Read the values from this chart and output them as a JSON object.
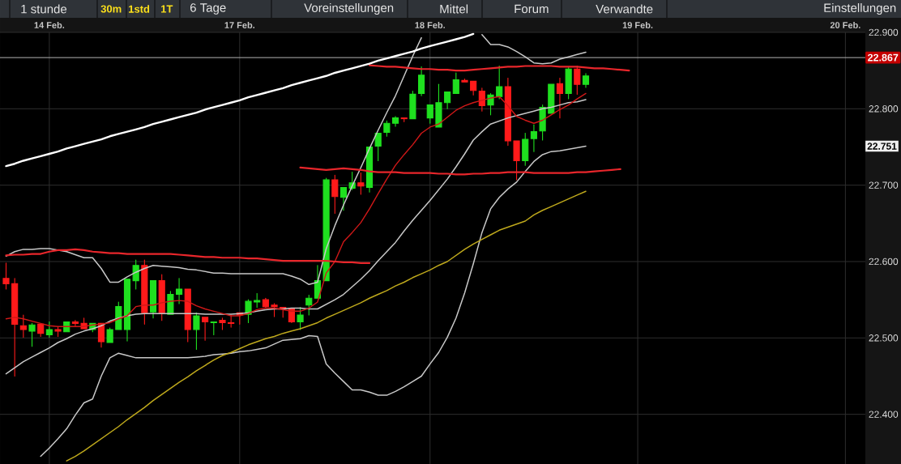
{
  "chart_data": {
    "type": "candlestick",
    "categories": [
      null,
      null,
      null,
      null,
      null,
      "14 Feb.",
      null,
      null,
      null,
      null,
      null,
      null,
      null,
      null,
      null,
      null,
      null,
      null,
      null,
      null,
      null,
      null,
      null,
      null,
      null,
      null,
      null,
      "17 Feb.",
      null,
      null,
      null,
      null,
      null,
      null,
      null,
      null,
      null,
      null,
      null,
      null,
      null,
      null,
      null,
      null,
      null,
      null,
      null,
      null,
      null,
      "18 Feb.",
      null,
      null,
      null,
      null,
      null,
      null,
      null,
      null,
      null,
      null,
      null,
      null,
      null,
      null,
      null,
      null,
      null,
      null,
      null,
      null,
      null,
      null,
      null,
      "19 Feb.",
      null,
      null,
      null,
      null,
      null,
      null,
      null,
      null,
      null,
      null,
      null,
      null,
      null,
      null,
      null,
      null,
      null,
      null,
      null,
      null,
      null,
      null,
      null,
      "20 Feb.",
      null,
      null
    ],
    "ohlc": [
      [
        22.578,
        22.598,
        22.564,
        22.571
      ],
      [
        22.571,
        22.578,
        22.45,
        22.518
      ],
      [
        22.516,
        22.53,
        22.501,
        22.511
      ],
      [
        22.509,
        22.519,
        22.489,
        22.517
      ],
      [
        22.518,
        22.518,
        22.502,
        22.506
      ],
      [
        22.504,
        22.521,
        22.501,
        22.511
      ],
      [
        22.511,
        22.515,
        22.502,
        22.509
      ],
      [
        22.508,
        22.521,
        22.508,
        22.521
      ],
      [
        22.521,
        22.523,
        22.516,
        22.519
      ],
      [
        22.519,
        22.526,
        22.512,
        22.512
      ],
      [
        22.511,
        22.519,
        22.508,
        22.519
      ],
      [
        22.519,
        22.519,
        22.488,
        22.495
      ],
      [
        22.494,
        22.513,
        22.494,
        22.511
      ],
      [
        22.511,
        22.547,
        22.511,
        22.541
      ],
      [
        22.511,
        22.577,
        22.496,
        22.577
      ],
      [
        22.575,
        22.602,
        22.564,
        22.595
      ],
      [
        22.595,
        22.602,
        22.518,
        22.533
      ],
      [
        22.534,
        22.575,
        22.526,
        22.575
      ],
      [
        22.575,
        22.583,
        22.523,
        22.533
      ],
      [
        22.531,
        22.561,
        22.531,
        22.557
      ],
      [
        22.557,
        22.578,
        22.545,
        22.564
      ],
      [
        22.564,
        22.564,
        22.495,
        22.511
      ],
      [
        22.511,
        22.533,
        22.485,
        22.529
      ],
      [
        22.527,
        22.527,
        22.497,
        22.521
      ],
      [
        22.52,
        22.521,
        22.504,
        22.521
      ],
      [
        22.523,
        22.526,
        22.511,
        22.52
      ],
      [
        22.52,
        22.53,
        22.514,
        22.519
      ],
      [
        22.533,
        22.533,
        22.518,
        22.53
      ],
      [
        22.531,
        22.55,
        22.52,
        22.548
      ],
      [
        22.547,
        22.558,
        22.54,
        22.549
      ],
      [
        22.55,
        22.552,
        22.54,
        22.541
      ],
      [
        22.543,
        22.545,
        22.528,
        22.541
      ],
      [
        22.54,
        22.54,
        22.527,
        22.538
      ],
      [
        22.538,
        22.538,
        22.52,
        22.521
      ],
      [
        22.521,
        22.54,
        22.511,
        22.53
      ],
      [
        22.543,
        22.556,
        22.53,
        22.552
      ],
      [
        22.552,
        22.595,
        22.552,
        22.575
      ],
      [
        22.575,
        22.709,
        22.575,
        22.707
      ],
      [
        22.707,
        22.713,
        22.663,
        22.685
      ],
      [
        22.684,
        22.697,
        22.667,
        22.697
      ],
      [
        22.696,
        22.717,
        22.694,
        22.703
      ],
      [
        22.703,
        22.716,
        22.688,
        22.699
      ],
      [
        22.697,
        22.75,
        22.691,
        22.75
      ],
      [
        22.751,
        22.768,
        22.732,
        22.768
      ],
      [
        22.769,
        22.784,
        22.764,
        22.781
      ],
      [
        22.781,
        22.79,
        22.777,
        22.788
      ],
      [
        22.788,
        22.788,
        22.783,
        22.787
      ],
      [
        22.787,
        22.823,
        22.787,
        22.819
      ],
      [
        22.82,
        22.855,
        22.817,
        22.844
      ],
      [
        22.788,
        22.805,
        22.781,
        22.805
      ],
      [
        22.776,
        22.832,
        22.776,
        22.808
      ],
      [
        22.808,
        22.822,
        22.8,
        22.822
      ],
      [
        22.82,
        22.847,
        22.82,
        22.838
      ],
      [
        22.837,
        22.839,
        22.835,
        22.835
      ],
      [
        22.836,
        22.836,
        22.818,
        22.824
      ],
      [
        22.823,
        22.827,
        22.797,
        22.804
      ],
      [
        22.805,
        22.82,
        22.792,
        22.818
      ],
      [
        22.816,
        22.856,
        22.813,
        22.829
      ],
      [
        22.829,
        22.84,
        22.752,
        22.758
      ],
      [
        22.758,
        22.758,
        22.707,
        22.732
      ],
      [
        22.732,
        22.768,
        22.726,
        22.76
      ],
      [
        22.761,
        22.779,
        22.744,
        22.77
      ],
      [
        22.771,
        22.805,
        22.759,
        22.802
      ],
      [
        22.794,
        22.832,
        22.794,
        22.832
      ],
      [
        22.833,
        22.84,
        22.788,
        22.82
      ],
      [
        22.82,
        22.854,
        22.813,
        22.852
      ],
      [
        22.852,
        22.856,
        22.819,
        22.832
      ],
      [
        22.832,
        22.846,
        22.828,
        22.843
      ],
      null,
      null,
      null,
      null,
      null,
      null,
      null,
      null,
      null,
      null,
      null,
      null,
      null,
      null,
      null,
      null,
      null,
      null,
      null,
      null,
      null,
      null,
      null,
      null,
      null,
      null,
      null,
      null,
      null,
      null,
      null,
      null
    ],
    "colors": [
      "#ff1a1a",
      "#ff1a1a",
      "#ff1a1a",
      "#1fe01f",
      "#ff1a1a",
      "#1fe01f",
      "#ff1a1a",
      "#1fe01f",
      "#ff1a1a",
      "#ff1a1a",
      "#1fe01f",
      "#ff1a1a",
      "#1fe01f",
      "#1fe01f",
      "#1fe01f",
      "#1fe01f",
      "#ff1a1a",
      "#1fe01f",
      "#ff1a1a",
      "#1fe01f",
      "#1fe01f",
      "#ff1a1a",
      "#1fe01f",
      "#ff1a1a",
      "#1fe01f",
      "#ff1a1a",
      "#ff1a1a",
      "#ff1a1a",
      "#1fe01f",
      "#1fe01f",
      "#ff1a1a",
      "#ff1a1a",
      "#ff1a1a",
      "#ff1a1a",
      "#1fe01f",
      "#1fe01f",
      "#1fe01f",
      "#1fe01f",
      "#ff1a1a",
      "#1fe01f",
      "#1fe01f",
      "#ff1a1a",
      "#1fe01f",
      "#1fe01f",
      "#1fe01f",
      "#1fe01f",
      "#ff1a1a",
      "#1fe01f",
      "#1fe01f",
      "#1fe01f",
      "#1fe01f",
      "#1fe01f",
      "#1fe01f",
      "#ff1a1a",
      "#ff1a1a",
      "#ff1a1a",
      "#1fe01f",
      "#1fe01f",
      "#ff1a1a",
      "#ff1a1a",
      "#1fe01f",
      "#1fe01f",
      "#1fe01f",
      "#1fe01f",
      "#ff1a1a",
      "#1fe01f",
      "#ff1a1a",
      "#1fe01f",
      null,
      null,
      null,
      null,
      null,
      null,
      null,
      null,
      null,
      null,
      null,
      null,
      null,
      null,
      null,
      null,
      null,
      null,
      null,
      null,
      null,
      null,
      null,
      null,
      null,
      null,
      null,
      null,
      null,
      null,
      null,
      null
    ],
    "series": [
      {
        "type": "line",
        "color": "#c8c8c8",
        "values": [
          22.607,
          22.613,
          22.616,
          22.616,
          22.617,
          22.617,
          22.615,
          22.613,
          22.609,
          22.605,
          22.605,
          22.591,
          22.573,
          22.573,
          22.58,
          22.586,
          22.591,
          22.595,
          22.594,
          22.593,
          22.592,
          22.59,
          22.589,
          22.587,
          22.585,
          22.585,
          22.584,
          22.584,
          22.584,
          22.584,
          22.584,
          22.584,
          22.584,
          22.581,
          22.577,
          22.57,
          22.573,
          22.617,
          22.647,
          22.674,
          22.699,
          22.723,
          22.748,
          22.772,
          22.795,
          22.817,
          22.843,
          22.869,
          22.893,
          null,
          null,
          null,
          null,
          null,
          null,
          22.897,
          22.884,
          22.884,
          22.881,
          22.875,
          22.868,
          22.86,
          22.859,
          22.86,
          22.865,
          22.868,
          22.871,
          22.874,
          null,
          null,
          null,
          null,
          null,
          null,
          null,
          null,
          null,
          null,
          null,
          null,
          null,
          null,
          null,
          null,
          null,
          null,
          null,
          null,
          null,
          null,
          null,
          null,
          null,
          null,
          null,
          null,
          null,
          null,
          null,
          null
        ]
      },
      {
        "type": "line",
        "color": "#c8c8c8",
        "values": [
          22.453,
          22.461,
          22.469,
          22.475,
          22.481,
          22.487,
          22.494,
          22.499,
          22.505,
          22.509,
          22.512,
          22.516,
          22.522,
          22.526,
          22.529,
          22.531,
          22.532,
          22.532,
          22.532,
          22.532,
          22.532,
          22.532,
          22.532,
          22.531,
          22.531,
          22.531,
          22.531,
          22.532,
          22.533,
          22.535,
          22.537,
          22.538,
          22.538,
          22.539,
          22.539,
          22.538,
          22.538,
          22.544,
          22.55,
          22.557,
          22.567,
          22.577,
          22.588,
          22.601,
          22.613,
          22.625,
          22.64,
          22.654,
          22.667,
          22.68,
          22.694,
          22.708,
          22.724,
          22.741,
          22.759,
          22.77,
          22.78,
          22.784,
          22.788,
          22.791,
          22.794,
          22.797,
          22.8,
          22.802,
          22.805,
          22.808,
          22.809,
          22.812,
          null,
          null,
          null,
          null,
          null,
          null,
          null,
          null,
          null,
          null,
          null,
          null,
          null,
          null,
          null,
          null,
          null,
          null,
          null,
          null,
          null,
          null,
          null,
          null,
          null,
          null,
          null,
          null,
          null,
          null,
          null,
          null
        ]
      },
      {
        "type": "line",
        "color": "#c8c8c8",
        "values": [
          null,
          null,
          null,
          null,
          22.345,
          22.356,
          22.368,
          22.381,
          22.399,
          22.415,
          22.42,
          22.45,
          22.474,
          22.48,
          22.477,
          22.474,
          22.474,
          22.474,
          22.474,
          22.474,
          22.474,
          22.474,
          22.475,
          22.476,
          22.478,
          22.479,
          22.48,
          22.482,
          22.483,
          22.485,
          22.487,
          22.492,
          22.497,
          22.498,
          22.499,
          22.503,
          22.502,
          22.466,
          22.454,
          22.443,
          22.432,
          22.432,
          22.429,
          22.425,
          22.425,
          22.43,
          22.436,
          22.443,
          22.45,
          22.466,
          22.481,
          22.501,
          22.526,
          22.559,
          22.597,
          22.638,
          22.669,
          22.684,
          22.695,
          22.704,
          22.718,
          22.731,
          22.74,
          22.744,
          22.745,
          22.747,
          22.749,
          22.751,
          null,
          null,
          null,
          null,
          null,
          null,
          null,
          null,
          null,
          null,
          null,
          null,
          null,
          null,
          null,
          null,
          null,
          null,
          null,
          null,
          null,
          null,
          null,
          null,
          null,
          null,
          null,
          null,
          null,
          null,
          null,
          null
        ]
      },
      {
        "type": "line",
        "color": "#bfa91c",
        "values": [
          null,
          null,
          null,
          null,
          null,
          null,
          null,
          22.339,
          22.345,
          22.352,
          22.36,
          22.368,
          22.376,
          22.384,
          22.393,
          22.401,
          22.409,
          22.418,
          22.426,
          22.434,
          22.442,
          22.449,
          22.457,
          22.464,
          22.471,
          22.477,
          22.481,
          22.486,
          22.491,
          22.495,
          22.499,
          22.502,
          22.506,
          22.509,
          22.512,
          22.516,
          22.52,
          22.526,
          22.531,
          22.536,
          22.541,
          22.546,
          22.552,
          22.557,
          22.562,
          22.568,
          22.573,
          22.579,
          22.584,
          22.589,
          22.595,
          22.6,
          22.608,
          22.616,
          22.623,
          22.629,
          22.635,
          22.641,
          22.645,
          22.649,
          22.653,
          22.661,
          22.667,
          22.672,
          22.677,
          22.682,
          22.687,
          22.692,
          null,
          null,
          null,
          null,
          null,
          null,
          null,
          null,
          null,
          null,
          null,
          null,
          null,
          null,
          null,
          null,
          null,
          null,
          null,
          null,
          null,
          null,
          null,
          null,
          null,
          null,
          null,
          null,
          null,
          null,
          null,
          null
        ]
      },
      {
        "type": "line",
        "color": "#d01818",
        "values": [
          22.525,
          22.527,
          22.525,
          22.522,
          22.519,
          22.516,
          22.515,
          22.515,
          22.515,
          22.515,
          22.517,
          22.518,
          22.52,
          22.525,
          22.529,
          22.541,
          22.543,
          22.543,
          22.546,
          22.548,
          22.549,
          22.548,
          22.542,
          22.538,
          22.535,
          22.532,
          22.529,
          22.529,
          22.532,
          22.537,
          22.539,
          22.539,
          22.537,
          22.535,
          22.535,
          22.539,
          22.547,
          22.585,
          22.6,
          22.626,
          22.638,
          22.651,
          22.669,
          22.689,
          22.708,
          22.726,
          22.74,
          22.753,
          22.768,
          22.776,
          22.78,
          22.789,
          22.798,
          22.804,
          22.808,
          22.811,
          22.814,
          22.816,
          22.804,
          22.79,
          22.785,
          22.781,
          22.785,
          22.792,
          22.799,
          22.805,
          22.813,
          22.82,
          null,
          null,
          null,
          null,
          null,
          null,
          null,
          null,
          null,
          null,
          null,
          null,
          null,
          null,
          null,
          null,
          null,
          null,
          null,
          null,
          null,
          null,
          null,
          null,
          null,
          null,
          null,
          null,
          null,
          null,
          null,
          null
        ]
      },
      {
        "type": "line",
        "color": "#e8262b",
        "values": [
          22.608,
          22.609,
          22.609,
          22.61,
          22.61,
          22.613,
          22.615,
          22.615,
          22.616,
          22.615,
          22.613,
          22.612,
          22.611,
          22.611,
          22.61,
          22.61,
          22.61,
          22.61,
          22.61,
          22.61,
          22.609,
          22.608,
          22.607,
          22.606,
          22.606,
          22.605,
          22.605,
          22.605,
          22.604,
          22.604,
          22.603,
          22.602,
          22.601,
          22.601,
          22.601,
          22.601,
          22.601,
          22.601,
          22.6,
          22.599,
          22.599,
          22.598,
          22.598,
          null,
          null,
          null,
          null,
          null,
          null,
          null,
          null,
          null,
          null,
          null,
          null,
          null,
          null,
          null,
          null,
          null,
          null,
          null,
          null,
          null,
          null,
          null,
          null,
          null,
          null,
          null,
          null,
          null,
          null,
          null,
          null,
          null,
          null,
          null,
          null,
          null,
          null,
          null,
          null,
          null,
          null,
          null,
          null,
          null,
          null,
          null,
          null,
          null,
          null,
          null,
          null,
          null,
          null,
          null,
          null,
          null
        ]
      },
      {
        "type": "line",
        "color": "#e8262b",
        "values": [
          null,
          null,
          null,
          null,
          null,
          null,
          null,
          null,
          null,
          null,
          null,
          null,
          null,
          null,
          null,
          null,
          null,
          null,
          null,
          null,
          null,
          null,
          null,
          null,
          null,
          null,
          null,
          null,
          null,
          null,
          null,
          null,
          null,
          null,
          22.723,
          22.722,
          22.721,
          22.72,
          22.721,
          22.722,
          22.721,
          22.72,
          22.718,
          22.717,
          22.717,
          22.717,
          22.716,
          22.716,
          22.716,
          22.716,
          22.715,
          22.715,
          22.714,
          22.714,
          22.715,
          22.715,
          22.716,
          22.716,
          22.717,
          22.717,
          22.717,
          22.716,
          22.716,
          22.716,
          22.716,
          22.716,
          22.717,
          22.717,
          22.718,
          22.719,
          22.72,
          22.721,
          null,
          null,
          null,
          null,
          null,
          null,
          null,
          null,
          null,
          null,
          null,
          null,
          null,
          null,
          null,
          null,
          null,
          null,
          null,
          null,
          null,
          null,
          null,
          null,
          null,
          null,
          null,
          null
        ]
      },
      {
        "type": "line",
        "color": "#e8262b",
        "values": [
          null,
          null,
          null,
          null,
          null,
          null,
          null,
          null,
          null,
          null,
          null,
          null,
          null,
          null,
          null,
          null,
          null,
          null,
          null,
          null,
          null,
          null,
          null,
          null,
          null,
          null,
          null,
          null,
          null,
          null,
          null,
          null,
          null,
          null,
          null,
          null,
          null,
          null,
          null,
          null,
          null,
          null,
          22.857,
          22.856,
          22.855,
          22.855,
          22.854,
          22.853,
          22.852,
          22.852,
          22.851,
          22.851,
          22.85,
          22.85,
          22.851,
          22.852,
          22.853,
          22.854,
          22.855,
          22.855,
          22.856,
          22.856,
          22.856,
          22.856,
          22.855,
          22.855,
          22.855,
          22.854,
          22.853,
          22.853,
          22.852,
          22.851,
          22.85,
          null,
          null,
          null,
          null,
          null,
          null,
          null,
          null,
          null,
          null,
          null,
          null,
          null,
          null,
          null,
          null,
          null,
          null,
          null,
          null,
          null,
          null,
          null,
          null,
          null,
          null,
          null
        ]
      },
      {
        "type": "line",
        "color": "#ffffff",
        "values": [
          22.725,
          22.728,
          22.732,
          22.735,
          22.738,
          22.741,
          22.744,
          22.748,
          22.751,
          22.754,
          22.757,
          22.76,
          22.764,
          22.767,
          22.77,
          22.773,
          22.776,
          22.78,
          22.783,
          22.786,
          22.789,
          22.792,
          22.795,
          22.799,
          22.802,
          22.805,
          22.808,
          22.811,
          22.815,
          22.818,
          22.821,
          22.824,
          22.827,
          22.831,
          22.834,
          22.837,
          22.84,
          22.843,
          22.847,
          22.85,
          22.853,
          22.856,
          22.859,
          22.863,
          22.866,
          22.869,
          22.872,
          22.875,
          22.879,
          22.882,
          22.885,
          22.888,
          22.891,
          22.894,
          22.898,
          null,
          null,
          null,
          null,
          null,
          null,
          null,
          null,
          null,
          null,
          null,
          null,
          null,
          null,
          null,
          null,
          null,
          null,
          null,
          null,
          null,
          null,
          null,
          null,
          null,
          null,
          null,
          null,
          null,
          null,
          null,
          null,
          null,
          null,
          null,
          null,
          null,
          null,
          null,
          null,
          null,
          null,
          null,
          null,
          null
        ]
      }
    ],
    "ylim": [
      22.335,
      22.9
    ],
    "yticks": [
      {
        "value": 22.4,
        "label": "22.400"
      },
      {
        "value": 22.5,
        "label": "22.500"
      },
      {
        "value": 22.6,
        "label": "22.600"
      },
      {
        "value": 22.7,
        "label": "22.700"
      },
      {
        "value": 22.8,
        "label": "22.800"
      },
      {
        "value": 22.9,
        "label": "22.900"
      }
    ],
    "grid": true,
    "ref_lines": [
      {
        "axis": "y",
        "value": 22.867,
        "label": "22.867",
        "color": "#b4b4b4"
      }
    ],
    "annotations": [
      "1 stunde",
      "30m",
      "1std",
      "1T",
      "6 Tage",
      "Voreinstellungen",
      "Mittel",
      "Forum",
      "Verwandte",
      "Einstellungen",
      {
        "text": "22.751",
        "y": 22.751
      }
    ]
  }
}
